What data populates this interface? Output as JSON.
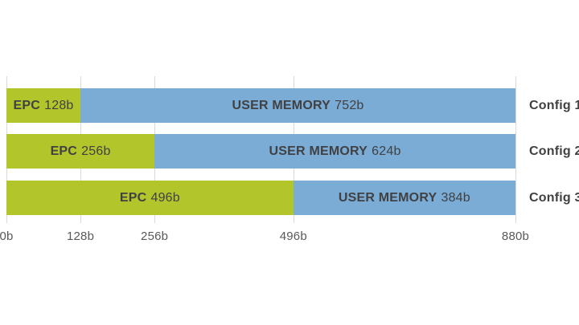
{
  "chart_data": {
    "type": "bar",
    "orientation": "horizontal",
    "stacked": true,
    "title": "",
    "categories": [
      "Config 1",
      "Config 2",
      "Config 3"
    ],
    "series": [
      {
        "name": "EPC",
        "color": "#b2c62b",
        "values": [
          128,
          256,
          496
        ]
      },
      {
        "name": "USER MEMORY",
        "color": "#7aacd5",
        "values": [
          752,
          624,
          384
        ]
      }
    ],
    "unit": "b",
    "total_per_bar": 880,
    "x_axis": {
      "max": 880,
      "tick_values": [
        0,
        128,
        256,
        496,
        880
      ],
      "ticks": [
        "0b",
        "128b",
        "256b",
        "496b",
        "880b"
      ]
    },
    "legend_position": "none",
    "grid": "vertical-light"
  },
  "bars": [
    {
      "config": "Config 1",
      "epc_name": "EPC",
      "epc_value": "128b",
      "mem_name": "USER MEMORY",
      "mem_value": "752b"
    },
    {
      "config": "Config 2",
      "epc_name": "EPC",
      "epc_value": "256b",
      "mem_name": "USER MEMORY",
      "mem_value": "624b"
    },
    {
      "config": "Config 3",
      "epc_name": "EPC",
      "epc_value": "496b",
      "mem_name": "USER MEMORY",
      "mem_value": "384b"
    }
  ],
  "colors": {
    "epc": "#b2c62b",
    "user_memory": "#7aacd5",
    "bar_text": "#414042",
    "axis_text": "#58595b",
    "gridline": "#d9d9d9",
    "background": "#ffffff"
  }
}
